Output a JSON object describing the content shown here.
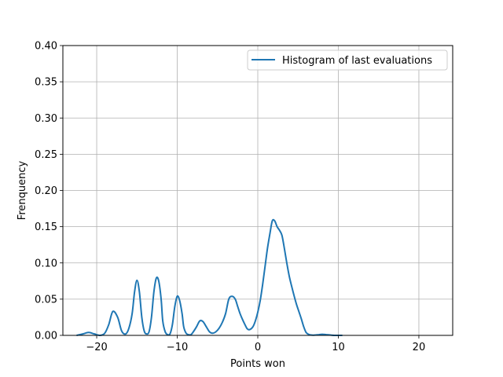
{
  "chart_data": {
    "type": "line",
    "title": "",
    "xlabel": "Points won",
    "ylabel": "Frenquency",
    "xlim": [
      -24.2,
      24.2
    ],
    "ylim": [
      0,
      0.4
    ],
    "xticks": [
      -20,
      -10,
      0,
      10,
      20
    ],
    "xtick_labels": [
      "−20",
      "−10",
      "0",
      "10",
      "20"
    ],
    "yticks": [
      0.0,
      0.05,
      0.1,
      0.15,
      0.2,
      0.25,
      0.3,
      0.35,
      0.4
    ],
    "ytick_labels": [
      "0.00",
      "0.05",
      "0.10",
      "0.15",
      "0.20",
      "0.25",
      "0.30",
      "0.35",
      "0.40"
    ],
    "grid": true,
    "legend_position": "top-right",
    "colors": {
      "series": "#1f77b4",
      "grid": "#b0b0b0",
      "axis": "#000000"
    },
    "series": [
      {
        "name": "Histogram of last evaluations",
        "x": [
          -22.5,
          -21.7,
          -21.0,
          -20.3,
          -19.6,
          -19.0,
          -18.5,
          -18.0,
          -17.4,
          -16.9,
          -16.4,
          -16.0,
          -15.6,
          -15.3,
          -15.0,
          -14.7,
          -14.4,
          -14.1,
          -13.8,
          -13.5,
          -13.2,
          -12.9,
          -12.6,
          -12.3,
          -12.0,
          -11.8,
          -11.5,
          -11.2,
          -10.9,
          -10.6,
          -10.3,
          -10.0,
          -9.7,
          -9.4,
          -9.2,
          -8.9,
          -8.6,
          -8.3,
          -8.0,
          -7.6,
          -7.2,
          -6.8,
          -6.4,
          -6.0,
          -5.6,
          -5.2,
          -4.8,
          -4.4,
          -4.0,
          -3.6,
          -3.2,
          -2.8,
          -2.5,
          -2.2,
          -1.9,
          -1.6,
          -1.3,
          -1.0,
          -0.6,
          -0.3,
          0.0,
          0.3,
          0.6,
          0.9,
          1.2,
          1.5,
          1.8,
          2.1,
          2.4,
          2.7,
          3.0,
          3.3,
          3.6,
          3.9,
          4.2,
          4.5,
          4.8,
          5.1,
          5.4,
          5.7,
          6.0,
          6.3,
          6.6,
          6.9,
          7.2,
          7.6,
          8.0,
          8.5,
          9.0,
          9.5,
          10.0,
          10.5
        ],
        "y": [
          0.0,
          0.002,
          0.004,
          0.002,
          0.0,
          0.003,
          0.015,
          0.033,
          0.025,
          0.006,
          0.002,
          0.01,
          0.03,
          0.06,
          0.076,
          0.06,
          0.025,
          0.006,
          0.002,
          0.005,
          0.025,
          0.06,
          0.079,
          0.075,
          0.05,
          0.02,
          0.005,
          0.001,
          0.002,
          0.015,
          0.04,
          0.054,
          0.048,
          0.03,
          0.012,
          0.003,
          0.001,
          0.001,
          0.005,
          0.012,
          0.02,
          0.019,
          0.012,
          0.005,
          0.003,
          0.005,
          0.01,
          0.018,
          0.03,
          0.05,
          0.054,
          0.05,
          0.04,
          0.03,
          0.022,
          0.015,
          0.009,
          0.008,
          0.012,
          0.02,
          0.032,
          0.048,
          0.07,
          0.095,
          0.12,
          0.14,
          0.158,
          0.158,
          0.15,
          0.145,
          0.138,
          0.12,
          0.1,
          0.082,
          0.068,
          0.055,
          0.043,
          0.033,
          0.023,
          0.012,
          0.004,
          0.0015,
          0.0005,
          0.0003,
          0.0005,
          0.001,
          0.0015,
          0.001,
          0.0005,
          0.0,
          0.0,
          0.0
        ]
      }
    ]
  }
}
